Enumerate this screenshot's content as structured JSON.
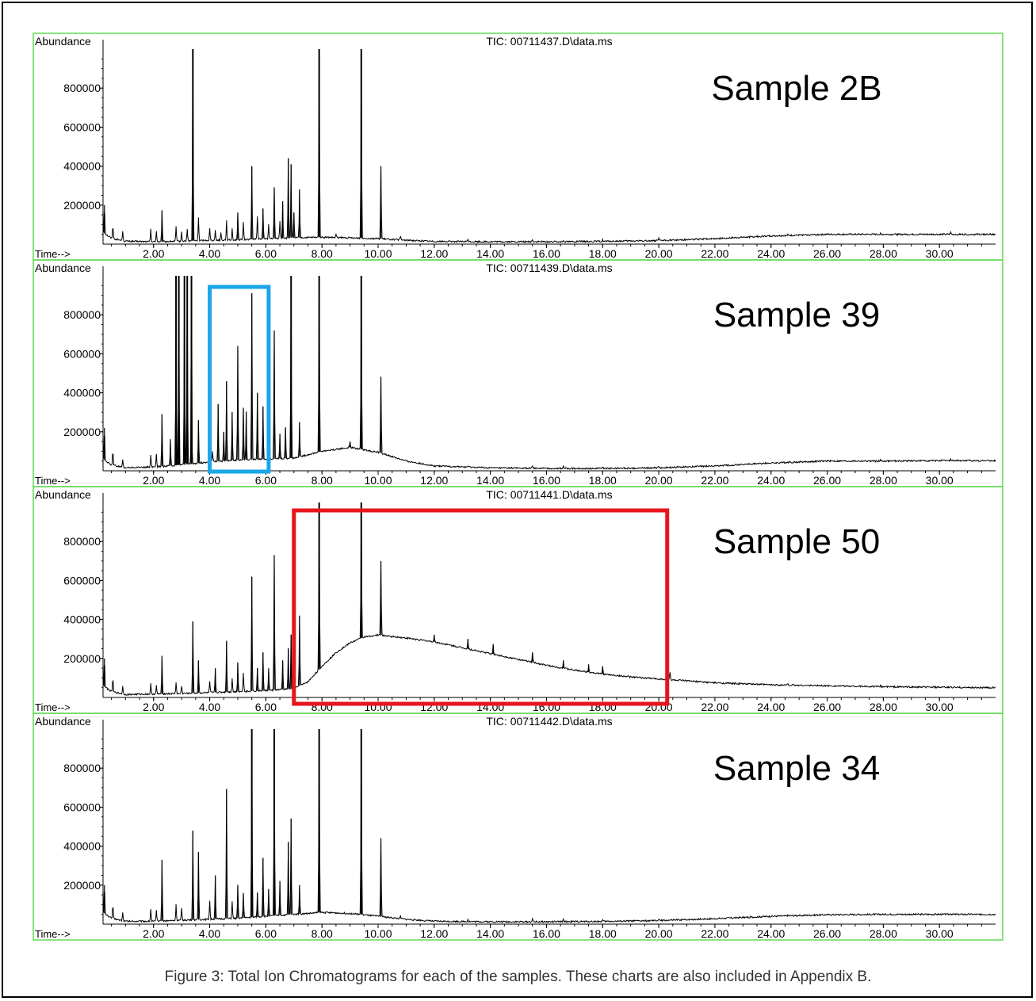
{
  "caption": "Figure 3: Total Ion Chromatograms for each of the samples.  These charts are also included in Appendix B.",
  "colors": {
    "panel_border": "#4cd43c",
    "trace": "#000000",
    "highlight_blue": "#1aa6e8",
    "highlight_red": "#e8141c"
  },
  "chart_data": [
    {
      "type": "line",
      "title": "TIC: 00711437.D\\data.ms",
      "sample_label": "Sample 2B",
      "ylabel": "Abundance",
      "xlabel": "Time-->",
      "xlim": [
        0.2,
        32
      ],
      "ylim": [
        0,
        1000000
      ],
      "xticks": [
        "2.00",
        "4.00",
        "6.00",
        "8.00",
        "10.00",
        "12.00",
        "14.00",
        "16.00",
        "18.00",
        "20.00",
        "22.00",
        "24.00",
        "26.00",
        "28.00",
        "30.00"
      ],
      "yticks": [
        "200000",
        "400000",
        "600000",
        "800000"
      ],
      "baseline": [
        [
          0.2,
          60000
        ],
        [
          0.5,
          30000
        ],
        [
          1,
          15000
        ],
        [
          2,
          12000
        ],
        [
          3,
          15000
        ],
        [
          4,
          20000
        ],
        [
          5,
          22000
        ],
        [
          6,
          28000
        ],
        [
          7,
          32000
        ],
        [
          8,
          35000
        ],
        [
          9,
          32000
        ],
        [
          10,
          28000
        ],
        [
          11,
          20000
        ],
        [
          12,
          14000
        ],
        [
          14,
          12000
        ],
        [
          16,
          12000
        ],
        [
          18,
          14000
        ],
        [
          20,
          18000
        ],
        [
          22,
          28000
        ],
        [
          24,
          42000
        ],
        [
          26,
          50000
        ],
        [
          28,
          50000
        ],
        [
          30,
          50000
        ],
        [
          32,
          50000
        ]
      ],
      "peaks": [
        [
          0.25,
          200000
        ],
        [
          0.55,
          100000
        ],
        [
          0.9,
          70000
        ],
        [
          1.9,
          80000
        ],
        [
          2.1,
          70000
        ],
        [
          2.3,
          170000
        ],
        [
          2.8,
          90000
        ],
        [
          3.0,
          60000
        ],
        [
          3.2,
          80000
        ],
        [
          3.4,
          1000000
        ],
        [
          3.6,
          140000
        ],
        [
          4.0,
          80000
        ],
        [
          4.2,
          70000
        ],
        [
          4.4,
          60000
        ],
        [
          4.6,
          120000
        ],
        [
          4.8,
          80000
        ],
        [
          5.0,
          160000
        ],
        [
          5.2,
          110000
        ],
        [
          5.5,
          400000
        ],
        [
          5.7,
          140000
        ],
        [
          5.9,
          180000
        ],
        [
          6.1,
          100000
        ],
        [
          6.3,
          290000
        ],
        [
          6.5,
          120000
        ],
        [
          6.6,
          220000
        ],
        [
          6.8,
          440000
        ],
        [
          6.9,
          410000
        ],
        [
          7.0,
          160000
        ],
        [
          7.2,
          280000
        ],
        [
          7.9,
          1000000
        ],
        [
          8.5,
          50000
        ],
        [
          9.4,
          1000000
        ],
        [
          10.1,
          400000
        ],
        [
          10.8,
          40000
        ],
        [
          13.2,
          25000
        ],
        [
          15.5,
          25000
        ],
        [
          16.6,
          22000
        ],
        [
          18.0,
          22000
        ],
        [
          20.0,
          28000
        ],
        [
          24.6,
          48000
        ],
        [
          27.9,
          55000
        ],
        [
          30.4,
          60000
        ]
      ]
    },
    {
      "type": "line",
      "title": "TIC: 00711439.D\\data.ms",
      "sample_label": "Sample 39",
      "ylabel": "Abundance",
      "xlabel": "Time-->",
      "xlim": [
        0.2,
        32
      ],
      "ylim": [
        0,
        1000000
      ],
      "xticks": [
        "2.00",
        "4.00",
        "6.00",
        "8.00",
        "10.00",
        "12.00",
        "14.00",
        "16.00",
        "18.00",
        "20.00",
        "22.00",
        "24.00",
        "26.00",
        "28.00",
        "30.00"
      ],
      "yticks": [
        "200000",
        "400000",
        "600000",
        "800000"
      ],
      "baseline": [
        [
          0.2,
          60000
        ],
        [
          0.5,
          30000
        ],
        [
          1,
          15000
        ],
        [
          2,
          20000
        ],
        [
          3,
          30000
        ],
        [
          4,
          45000
        ],
        [
          5,
          55000
        ],
        [
          6,
          60000
        ],
        [
          7,
          65000
        ],
        [
          8,
          100000
        ],
        [
          9,
          120000
        ],
        [
          10,
          95000
        ],
        [
          11,
          50000
        ],
        [
          12,
          25000
        ],
        [
          14,
          15000
        ],
        [
          16,
          12000
        ],
        [
          18,
          12000
        ],
        [
          20,
          15000
        ],
        [
          22,
          25000
        ],
        [
          24,
          40000
        ],
        [
          26,
          50000
        ],
        [
          28,
          50000
        ],
        [
          30,
          52000
        ],
        [
          32,
          52000
        ]
      ],
      "peaks": [
        [
          0.25,
          220000
        ],
        [
          0.55,
          110000
        ],
        [
          0.9,
          60000
        ],
        [
          1.9,
          80000
        ],
        [
          2.1,
          90000
        ],
        [
          2.3,
          290000
        ],
        [
          2.6,
          160000
        ],
        [
          2.8,
          1000000
        ],
        [
          2.9,
          1000000
        ],
        [
          3.1,
          1000000
        ],
        [
          3.2,
          1000000
        ],
        [
          3.35,
          1000000
        ],
        [
          3.6,
          260000
        ],
        [
          4.1,
          100000
        ],
        [
          4.3,
          340000
        ],
        [
          4.5,
          200000
        ],
        [
          4.6,
          460000
        ],
        [
          4.8,
          300000
        ],
        [
          5.0,
          640000
        ],
        [
          5.2,
          320000
        ],
        [
          5.3,
          300000
        ],
        [
          5.5,
          910000
        ],
        [
          5.7,
          400000
        ],
        [
          5.9,
          330000
        ],
        [
          6.1,
          180000
        ],
        [
          6.3,
          720000
        ],
        [
          6.5,
          190000
        ],
        [
          6.7,
          220000
        ],
        [
          6.9,
          1000000
        ],
        [
          7.2,
          250000
        ],
        [
          7.9,
          1000000
        ],
        [
          8.5,
          110000
        ],
        [
          9.0,
          150000
        ],
        [
          9.4,
          1000000
        ],
        [
          10.1,
          480000
        ],
        [
          10.8,
          60000
        ],
        [
          13.2,
          25000
        ],
        [
          15.5,
          25000
        ],
        [
          16.6,
          25000
        ],
        [
          18.0,
          22000
        ],
        [
          20.0,
          25000
        ],
        [
          24.6,
          45000
        ],
        [
          27.9,
          55000
        ],
        [
          30.4,
          60000
        ]
      ]
    },
    {
      "type": "line",
      "title": "TIC: 00711441.D\\data.ms",
      "sample_label": "Sample 50",
      "ylabel": "Abundance",
      "xlabel": "Time-->",
      "xlim": [
        0.2,
        32
      ],
      "ylim": [
        0,
        1000000
      ],
      "xticks": [
        "2.00",
        "4.00",
        "6.00",
        "8.00",
        "10.00",
        "12.00",
        "14.00",
        "16.00",
        "18.00",
        "20.00",
        "22.00",
        "24.00",
        "26.00",
        "28.00",
        "30.00"
      ],
      "yticks": [
        "200000",
        "400000",
        "600000",
        "800000"
      ],
      "baseline": [
        [
          0.2,
          60000
        ],
        [
          0.5,
          30000
        ],
        [
          1,
          15000
        ],
        [
          2,
          18000
        ],
        [
          3,
          20000
        ],
        [
          4,
          25000
        ],
        [
          5,
          30000
        ],
        [
          6,
          35000
        ],
        [
          7,
          45000
        ],
        [
          7.5,
          80000
        ],
        [
          8,
          160000
        ],
        [
          8.5,
          230000
        ],
        [
          9,
          280000
        ],
        [
          9.5,
          310000
        ],
        [
          10,
          320000
        ],
        [
          11,
          305000
        ],
        [
          12,
          285000
        ],
        [
          13,
          255000
        ],
        [
          14,
          225000
        ],
        [
          15,
          195000
        ],
        [
          16,
          165000
        ],
        [
          17,
          140000
        ],
        [
          18,
          120000
        ],
        [
          19,
          105000
        ],
        [
          20,
          95000
        ],
        [
          21,
          85000
        ],
        [
          22,
          75000
        ],
        [
          24,
          65000
        ],
        [
          26,
          60000
        ],
        [
          28,
          55000
        ],
        [
          30,
          52000
        ],
        [
          32,
          50000
        ]
      ],
      "peaks": [
        [
          0.25,
          200000
        ],
        [
          0.55,
          100000
        ],
        [
          0.9,
          60000
        ],
        [
          1.9,
          70000
        ],
        [
          2.1,
          60000
        ],
        [
          2.3,
          210000
        ],
        [
          2.8,
          80000
        ],
        [
          3.0,
          60000
        ],
        [
          3.4,
          390000
        ],
        [
          3.6,
          190000
        ],
        [
          4.0,
          80000
        ],
        [
          4.2,
          150000
        ],
        [
          4.6,
          290000
        ],
        [
          4.8,
          100000
        ],
        [
          5.0,
          180000
        ],
        [
          5.2,
          130000
        ],
        [
          5.5,
          620000
        ],
        [
          5.7,
          150000
        ],
        [
          5.9,
          230000
        ],
        [
          6.1,
          150000
        ],
        [
          6.3,
          730000
        ],
        [
          6.6,
          190000
        ],
        [
          6.8,
          250000
        ],
        [
          6.9,
          320000
        ],
        [
          7.2,
          420000
        ],
        [
          7.9,
          1000000
        ],
        [
          9.4,
          1000000
        ],
        [
          10.1,
          700000
        ],
        [
          12.0,
          320000
        ],
        [
          13.2,
          300000
        ],
        [
          14.1,
          270000
        ],
        [
          15.5,
          230000
        ],
        [
          16.6,
          190000
        ],
        [
          17.5,
          170000
        ],
        [
          18.0,
          160000
        ],
        [
          20.4,
          130000
        ],
        [
          24.6,
          70000
        ],
        [
          27.9,
          60000
        ],
        [
          30.4,
          55000
        ]
      ]
    },
    {
      "type": "line",
      "title": "TIC: 00711442.D\\data.ms",
      "sample_label": "Sample 34",
      "ylabel": "Abundance",
      "xlabel": "Time-->",
      "xlim": [
        0.2,
        32
      ],
      "ylim": [
        0,
        1000000
      ],
      "xticks": [
        "2.00",
        "4.00",
        "6.00",
        "8.00",
        "10.00",
        "12.00",
        "14.00",
        "16.00",
        "18.00",
        "20.00",
        "22.00",
        "24.00",
        "26.00",
        "28.00",
        "30.00"
      ],
      "yticks": [
        "200000",
        "400000",
        "600000",
        "800000"
      ],
      "baseline": [
        [
          0.2,
          60000
        ],
        [
          0.5,
          30000
        ],
        [
          1,
          15000
        ],
        [
          2,
          15000
        ],
        [
          3,
          20000
        ],
        [
          4,
          25000
        ],
        [
          5,
          30000
        ],
        [
          6,
          40000
        ],
        [
          7,
          50000
        ],
        [
          8,
          60000
        ],
        [
          9,
          55000
        ],
        [
          10,
          40000
        ],
        [
          11,
          25000
        ],
        [
          12,
          15000
        ],
        [
          14,
          12000
        ],
        [
          16,
          12000
        ],
        [
          18,
          14000
        ],
        [
          20,
          18000
        ],
        [
          22,
          28000
        ],
        [
          24,
          40000
        ],
        [
          26,
          48000
        ],
        [
          28,
          50000
        ],
        [
          30,
          50000
        ],
        [
          32,
          50000
        ]
      ],
      "peaks": [
        [
          0.25,
          200000
        ],
        [
          0.55,
          100000
        ],
        [
          0.9,
          60000
        ],
        [
          1.9,
          80000
        ],
        [
          2.1,
          70000
        ],
        [
          2.3,
          330000
        ],
        [
          2.8,
          100000
        ],
        [
          3.0,
          80000
        ],
        [
          3.4,
          480000
        ],
        [
          3.6,
          370000
        ],
        [
          4.0,
          120000
        ],
        [
          4.2,
          250000
        ],
        [
          4.6,
          690000
        ],
        [
          4.8,
          120000
        ],
        [
          5.0,
          200000
        ],
        [
          5.2,
          160000
        ],
        [
          5.5,
          1000000
        ],
        [
          5.7,
          160000
        ],
        [
          5.9,
          340000
        ],
        [
          6.1,
          180000
        ],
        [
          6.3,
          1000000
        ],
        [
          6.5,
          220000
        ],
        [
          6.8,
          420000
        ],
        [
          6.9,
          540000
        ],
        [
          7.2,
          200000
        ],
        [
          7.9,
          1000000
        ],
        [
          9.4,
          1000000
        ],
        [
          10.1,
          440000
        ],
        [
          10.8,
          40000
        ],
        [
          13.2,
          25000
        ],
        [
          15.5,
          25000
        ],
        [
          16.6,
          22000
        ],
        [
          18.0,
          22000
        ],
        [
          20.0,
          25000
        ],
        [
          24.6,
          45000
        ],
        [
          27.9,
          50000
        ],
        [
          30.4,
          55000
        ]
      ]
    }
  ],
  "highlights": [
    {
      "panel": 1,
      "color": "blue",
      "x": [
        4.0,
        6.1
      ]
    },
    {
      "panel": 2,
      "color": "red",
      "x": [
        7.0,
        20.3
      ]
    }
  ]
}
